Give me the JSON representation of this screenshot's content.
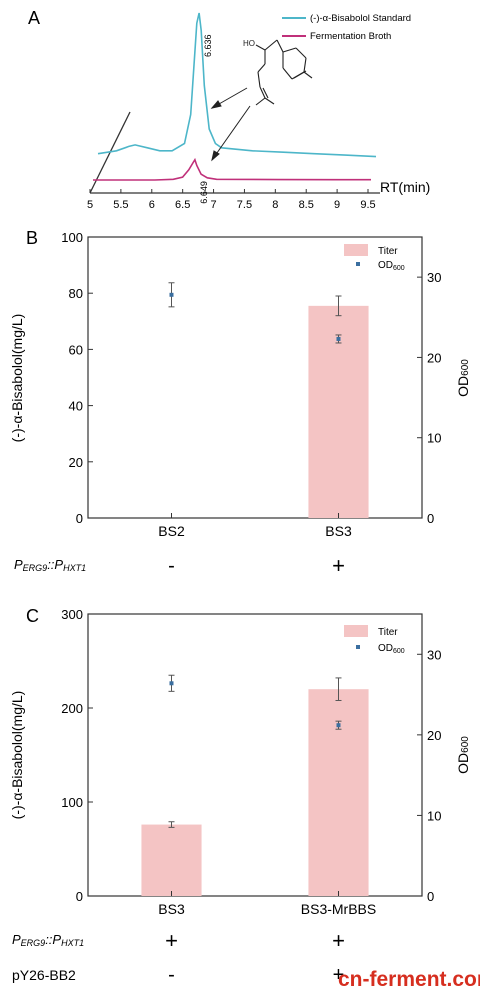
{
  "chart_data": [
    {
      "panel": "A",
      "type": "line",
      "xlabel": "RT(min)",
      "x_ticks": [
        "5",
        "5.5",
        "6",
        "6.5",
        "7",
        "7.5",
        "8",
        "8.5",
        "9",
        "9.5"
      ],
      "xlim": [
        5,
        9.5
      ],
      "legend_position": "top-right",
      "series": [
        {
          "name": "(-)-α-Bisabolol Standard",
          "color": "#4db6c9",
          "peak_rt": 6.636,
          "peak_label": "6.636",
          "x": [
            5.0,
            5.3,
            5.5,
            5.6,
            5.8,
            6.0,
            6.2,
            6.4,
            6.5,
            6.55,
            6.6,
            6.636,
            6.67,
            6.72,
            6.8,
            6.9,
            7.0,
            7.5,
            8.0,
            8.5,
            9.0,
            9.5
          ],
          "y": [
            0.03,
            0.05,
            0.08,
            0.09,
            0.07,
            0.05,
            0.05,
            0.1,
            0.3,
            0.62,
            0.93,
            1.0,
            0.88,
            0.5,
            0.2,
            0.1,
            0.07,
            0.05,
            0.04,
            0.03,
            0.02,
            0.01
          ]
        },
        {
          "name": "Fermentation Broth",
          "color": "#c0307a",
          "peak_rt": 6.649,
          "peak_label": "6.649",
          "x": [
            5.0,
            6.0,
            6.3,
            6.45,
            6.55,
            6.62,
            6.649,
            6.68,
            6.75,
            6.85,
            7.0,
            8.0,
            9.0,
            9.5
          ],
          "y": [
            0.0,
            0.0,
            0.005,
            0.02,
            0.07,
            0.12,
            0.14,
            0.1,
            0.04,
            0.015,
            0.005,
            0.003,
            0.002,
            0.002
          ]
        }
      ]
    },
    {
      "panel": "B",
      "type": "bar",
      "categories": [
        "BS2",
        "BS3"
      ],
      "ylabel": "(-)-α-Bisabolol(mg/L)",
      "y2label_main": "OD",
      "y2label_sub": "600",
      "ylim": [
        0,
        100
      ],
      "y_ticks": [
        "0",
        "20",
        "40",
        "60",
        "80",
        "100"
      ],
      "y2lim": [
        0,
        35
      ],
      "y2_ticks": [
        "0",
        "10",
        "20",
        "30"
      ],
      "legend_position": "top-right",
      "series": [
        {
          "name": "Titer",
          "color": "#f4c4c4",
          "values": [
            0,
            75.5
          ],
          "errors": [
            0,
            3.5
          ]
        },
        {
          "name_main": "OD",
          "name_sub": "600",
          "color": "#3b6fa0",
          "values": [
            27.8,
            22.3
          ],
          "errors": [
            1.5,
            0.5
          ]
        }
      ],
      "conditions": [
        {
          "label_main": "P",
          "label_sub1": "ERG9",
          "label_mid": "::P",
          "label_sub2": "HXT1",
          "signs": [
            "-",
            "+"
          ]
        }
      ]
    },
    {
      "panel": "C",
      "type": "bar",
      "categories": [
        "BS3",
        "BS3-MrBBS"
      ],
      "ylabel": "(-)-α-Bisabolol(mg/L)",
      "y2label_main": "OD",
      "y2label_sub": "600",
      "ylim": [
        0,
        300
      ],
      "y_ticks": [
        "0",
        "100",
        "200",
        "300"
      ],
      "y2lim": [
        0,
        35
      ],
      "y2_ticks": [
        "0",
        "10",
        "20",
        "30"
      ],
      "legend_position": "top-right",
      "series": [
        {
          "name": "Titer",
          "color": "#f4c4c4",
          "values": [
            76,
            220
          ],
          "errors": [
            3,
            12
          ]
        },
        {
          "name_main": "OD",
          "name_sub": "600",
          "color": "#3b6fa0",
          "values": [
            26.4,
            21.2
          ],
          "errors": [
            1.0,
            0.5
          ]
        }
      ],
      "conditions": [
        {
          "label_main": "P",
          "label_sub1": "ERG9",
          "label_mid": "::P",
          "label_sub2": "HXT1",
          "signs": [
            "+",
            "+"
          ]
        },
        {
          "label_main": "pY26-BB2",
          "signs": [
            "-",
            "+"
          ]
        }
      ]
    }
  ],
  "panel_labels": [
    "A",
    "B",
    "C"
  ],
  "structure_label": "HO",
  "watermark": "cn-ferment.com",
  "colors": {
    "axis": "#333333",
    "text": "#222222",
    "watermark_red": "#d62e1f",
    "watermark_dark": "#333333"
  }
}
